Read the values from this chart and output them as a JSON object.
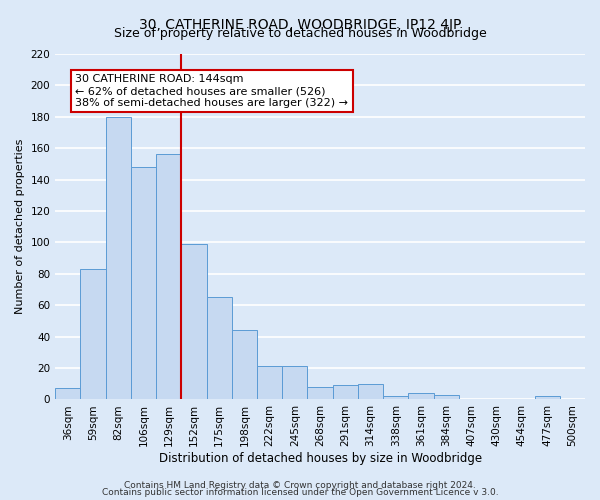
{
  "title": "30, CATHERINE ROAD, WOODBRIDGE, IP12 4JP",
  "subtitle": "Size of property relative to detached houses in Woodbridge",
  "xlabel": "Distribution of detached houses by size in Woodbridge",
  "ylabel": "Number of detached properties",
  "bar_labels": [
    "36sqm",
    "59sqm",
    "82sqm",
    "106sqm",
    "129sqm",
    "152sqm",
    "175sqm",
    "198sqm",
    "222sqm",
    "245sqm",
    "268sqm",
    "291sqm",
    "314sqm",
    "338sqm",
    "361sqm",
    "384sqm",
    "407sqm",
    "430sqm",
    "454sqm",
    "477sqm",
    "500sqm"
  ],
  "bar_values": [
    7,
    83,
    180,
    148,
    156,
    99,
    65,
    44,
    21,
    21,
    8,
    9,
    10,
    2,
    4,
    3,
    0,
    0,
    0,
    2,
    0
  ],
  "bar_color": "#c6d9f1",
  "bar_edgecolor": "#5b9bd5",
  "background_color": "#dce9f8",
  "plot_bg_color": "#dce9f8",
  "grid_color": "#ffffff",
  "vline_color": "#cc0000",
  "vline_x_index": 5,
  "annotation_line1": "30 CATHERINE ROAD: 144sqm",
  "annotation_line2": "← 62% of detached houses are smaller (526)",
  "annotation_line3": "38% of semi-detached houses are larger (322) →",
  "annotation_box_edgecolor": "#cc0000",
  "annotation_box_facecolor": "#ffffff",
  "ylim": [
    0,
    220
  ],
  "yticks": [
    0,
    20,
    40,
    60,
    80,
    100,
    120,
    140,
    160,
    180,
    200,
    220
  ],
  "footer1": "Contains HM Land Registry data © Crown copyright and database right 2024.",
  "footer2": "Contains public sector information licensed under the Open Government Licence v 3.0.",
  "title_fontsize": 10,
  "subtitle_fontsize": 9,
  "xlabel_fontsize": 8.5,
  "ylabel_fontsize": 8,
  "tick_fontsize": 7.5,
  "annotation_fontsize": 8,
  "footer_fontsize": 6.5
}
